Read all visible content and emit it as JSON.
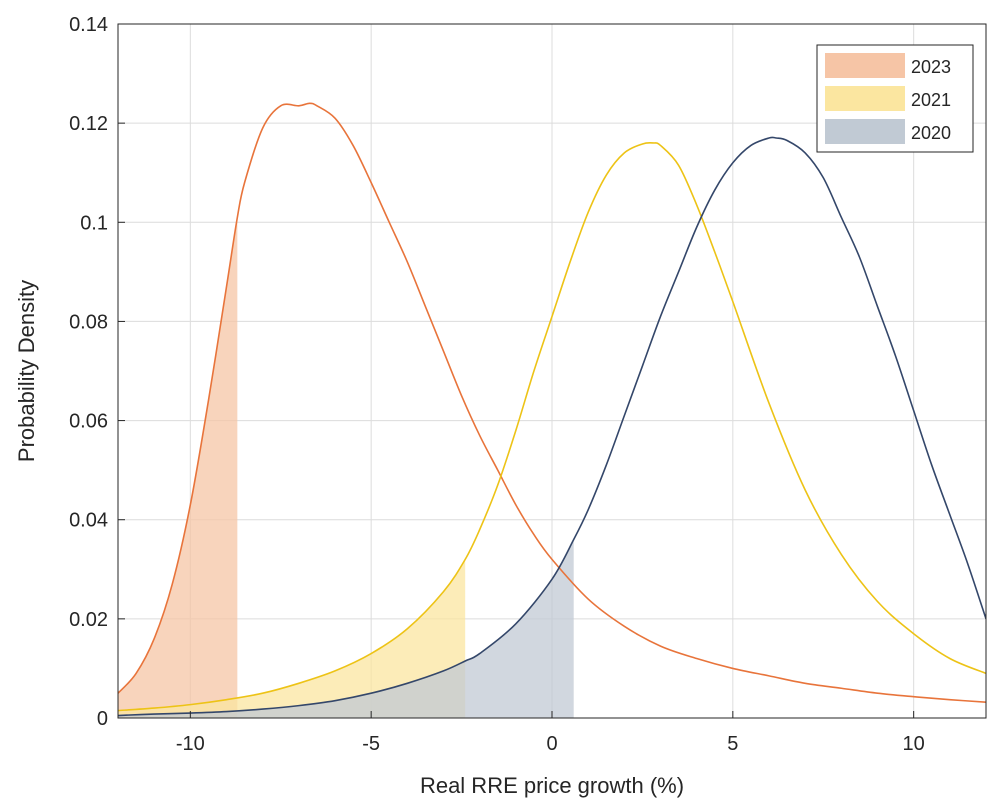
{
  "chart_data": {
    "type": "area",
    "title": "",
    "xlabel": "Real RRE price growth (%)",
    "ylabel": "Probability Density",
    "xlim": [
      -12,
      12
    ],
    "ylim": [
      0,
      0.14
    ],
    "xticks": [
      -10,
      -5,
      0,
      5,
      10
    ],
    "xtick_labels": [
      "-10",
      "-5",
      "0",
      "5",
      "10"
    ],
    "yticks": [
      0,
      0.02,
      0.04,
      0.06,
      0.08,
      0.1,
      0.12,
      0.14
    ],
    "ytick_labels": [
      "0",
      "0.02",
      "0.04",
      "0.06",
      "0.08",
      "0.1",
      "0.12",
      "0.14"
    ],
    "grid": true,
    "legend_position": "top-right",
    "series": [
      {
        "name": "2023",
        "line_color": "#E8743B",
        "fill_color": "#F6C5A6",
        "shaded_to_x": -8.7,
        "x": [
          -12,
          -11.5,
          -11,
          -10.5,
          -10,
          -9.5,
          -9,
          -8.7,
          -8.5,
          -8,
          -7.5,
          -7,
          -6.7,
          -6.5,
          -6,
          -5.5,
          -5,
          -4.5,
          -4,
          -3.5,
          -3,
          -2.5,
          -2,
          -1.5,
          -1,
          -0.5,
          0,
          1,
          2,
          3,
          4,
          5,
          6,
          7,
          8,
          9,
          10,
          11,
          12
        ],
        "y": [
          0.005,
          0.009,
          0.016,
          0.027,
          0.043,
          0.064,
          0.087,
          0.101,
          0.108,
          0.119,
          0.1235,
          0.1235,
          0.124,
          0.1235,
          0.121,
          0.1155,
          0.108,
          0.1,
          0.092,
          0.083,
          0.074,
          0.065,
          0.057,
          0.05,
          0.043,
          0.037,
          0.032,
          0.024,
          0.0185,
          0.0145,
          0.012,
          0.01,
          0.0085,
          0.007,
          0.006,
          0.005,
          0.0043,
          0.0037,
          0.0032
        ]
      },
      {
        "name": "2021",
        "line_color": "#EDC316",
        "fill_color": "#FBE6A0",
        "shaded_to_x": -2.4,
        "x": [
          -12,
          -11,
          -10,
          -9,
          -8,
          -7,
          -6,
          -5,
          -4,
          -3,
          -2.4,
          -2,
          -1.5,
          -1,
          -0.5,
          0,
          0.5,
          1,
          1.5,
          2,
          2.5,
          2.8,
          3,
          3.5,
          4,
          4.5,
          5,
          6,
          7,
          8,
          9,
          10,
          11,
          12
        ],
        "y": [
          0.0015,
          0.002,
          0.0027,
          0.0037,
          0.005,
          0.007,
          0.0095,
          0.013,
          0.018,
          0.0255,
          0.032,
          0.038,
          0.047,
          0.058,
          0.07,
          0.081,
          0.092,
          0.102,
          0.1095,
          0.114,
          0.1158,
          0.116,
          0.1155,
          0.1115,
          0.1035,
          0.094,
          0.084,
          0.0635,
          0.046,
          0.033,
          0.0235,
          0.017,
          0.012,
          0.009
        ]
      },
      {
        "name": "2020",
        "line_color": "#34476A",
        "fill_color": "#C1CAD4",
        "shaded_to_x": 0.6,
        "x": [
          -12,
          -11,
          -10,
          -9,
          -8,
          -7,
          -6,
          -5,
          -4,
          -3,
          -2.4,
          -2,
          -1,
          0,
          0.6,
          1,
          1.5,
          2,
          2.5,
          3,
          3.5,
          4,
          4.5,
          5,
          5.5,
          6,
          6.2,
          6.5,
          7,
          7.5,
          8,
          8.5,
          9,
          9.5,
          10,
          10.5,
          11,
          11.5,
          12
        ],
        "y": [
          0.0005,
          0.0008,
          0.001,
          0.0013,
          0.0018,
          0.0025,
          0.0035,
          0.005,
          0.007,
          0.0095,
          0.0115,
          0.013,
          0.019,
          0.028,
          0.036,
          0.042,
          0.051,
          0.061,
          0.071,
          0.081,
          0.09,
          0.099,
          0.1065,
          0.112,
          0.1155,
          0.117,
          0.117,
          0.1165,
          0.114,
          0.109,
          0.101,
          0.093,
          0.083,
          0.073,
          0.062,
          0.051,
          0.041,
          0.031,
          0.02
        ]
      }
    ]
  }
}
